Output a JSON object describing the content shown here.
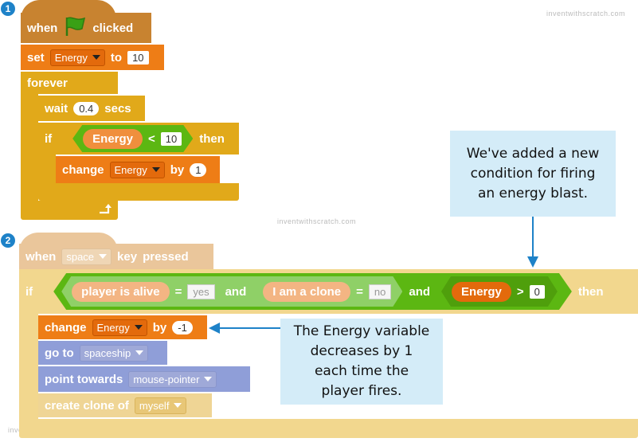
{
  "watermark": "inventwithscratch.com",
  "badges": [
    "1",
    "2"
  ],
  "script1": {
    "hat": {
      "when": "when",
      "flag_icon": "green-flag-icon",
      "clicked": "clicked"
    },
    "set": {
      "label": "set",
      "variable": "Energy",
      "to": "to",
      "value": "10"
    },
    "forever": {
      "label": "forever"
    },
    "wait": {
      "label": "wait",
      "value": "0.4",
      "unit": "secs"
    },
    "if": {
      "label": "if",
      "reporter": "Energy",
      "operator": "<",
      "value": "10",
      "then": "then"
    },
    "change": {
      "label": "change",
      "variable": "Energy",
      "by": "by",
      "value": "1"
    },
    "loop_arrow_icon": "loop-arrow-icon"
  },
  "script2": {
    "hat": {
      "when": "when",
      "key": "space",
      "key_pressed": "key",
      "pressed": "pressed"
    },
    "if": {
      "label": "if",
      "cond1": {
        "reporter": "player is alive",
        "eq": "=",
        "value": "yes"
      },
      "and1": "and",
      "cond2": {
        "reporter": "I am a clone",
        "eq": "=",
        "value": "no"
      },
      "and2": "and",
      "cond3": {
        "reporter": "Energy",
        "operator": ">",
        "value": "0"
      },
      "then": "then"
    },
    "change": {
      "label": "change",
      "variable": "Energy",
      "by": "by",
      "value": "-1"
    },
    "goto": {
      "label": "go to",
      "target": "spaceship"
    },
    "point": {
      "label": "point towards",
      "target": "mouse-pointer"
    },
    "clone": {
      "label": "create clone of",
      "target": "myself"
    }
  },
  "callouts": {
    "top": "We've added a new condition for firing an energy blast.",
    "bottom": "The Energy variable decreases by 1 each time the player fires."
  },
  "colors": {
    "events": "#c88330",
    "control": "#e1a91a",
    "variables": "#ee7d16",
    "motion": "#4a6cd4",
    "operators": "#5cb712",
    "callout": "#d4ecf8",
    "badge": "#1e82c8"
  }
}
